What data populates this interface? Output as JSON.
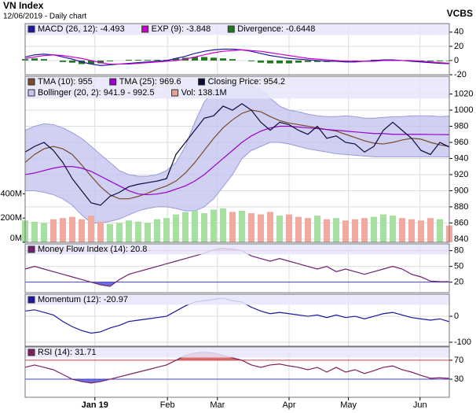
{
  "header": {
    "title": "VN Index",
    "subtitle": "12/06/2019 - Daily chart",
    "source": "VCBS"
  },
  "xticks": [
    {
      "value": 7.4,
      "label": "Jan 19"
    },
    {
      "value": 15.1,
      "label": "Feb"
    },
    {
      "value": 20.4,
      "label": "Mar"
    },
    {
      "value": 28,
      "label": "Apr"
    },
    {
      "value": 34.3,
      "label": "May"
    },
    {
      "value": 41.9,
      "label": "Jun"
    }
  ],
  "chart_data": [
    {
      "type": "line",
      "ylim": [
        -20,
        52
      ],
      "yticks": [
        -20,
        0,
        20,
        40
      ],
      "series": [
        {
          "name": "MACD (26, 12): -4.493",
          "kind": "line",
          "color": "#1a1aa0",
          "values": [
            5,
            8,
            9,
            8,
            5,
            2,
            -2,
            -5,
            -7,
            -6,
            -5,
            -4,
            -3,
            -2,
            -1,
            0,
            3,
            6,
            10,
            13,
            15,
            16,
            16,
            15,
            13,
            10,
            7,
            5,
            3,
            2,
            1,
            0,
            -1,
            -1,
            -2,
            -2,
            -1,
            0,
            1,
            1,
            0,
            -1,
            -2,
            -3,
            -4,
            -4.493
          ]
        },
        {
          "name": "EXP (9): -3.848",
          "kind": "line",
          "color": "#cc00cc",
          "values": [
            3,
            5,
            7,
            8,
            7,
            5,
            3,
            0,
            -3,
            -5,
            -5,
            -5,
            -4,
            -3,
            -2,
            -1,
            0,
            2,
            5,
            8,
            11,
            13,
            14,
            15,
            14,
            13,
            11,
            9,
            7,
            5,
            3,
            2,
            1,
            0,
            -1,
            -1,
            -1,
            -1,
            0,
            0,
            0,
            0,
            -1,
            -2,
            -3,
            -3.848
          ]
        },
        {
          "name": "Divergence: -0.6448",
          "kind": "bars",
          "color": "#1f7a1f",
          "values": [
            2,
            3,
            2,
            0,
            -2,
            -3,
            -5,
            -5,
            -4,
            -1,
            0,
            1,
            1,
            1,
            1,
            1,
            3,
            4,
            5,
            5,
            4,
            3,
            2,
            0,
            -1,
            -3,
            -4,
            -4,
            -4,
            -3,
            -2,
            -2,
            -2,
            -1,
            -1,
            -1,
            0,
            1,
            1,
            1,
            0,
            -1,
            -1,
            -1,
            -1,
            -0.6448
          ]
        }
      ]
    },
    {
      "type": "line",
      "ylim": [
        836,
        1042
      ],
      "yticks": [
        840,
        860,
        880,
        900,
        920,
        940,
        960,
        980,
        1000,
        1020
      ],
      "series": [
        {
          "name": "TMA (10): 955",
          "kind": "line",
          "color": "#7a4a2a",
          "values": [
            935,
            945,
            952,
            955,
            952,
            945,
            932,
            918,
            905,
            895,
            890,
            890,
            893,
            897,
            902,
            906,
            912,
            922,
            935,
            950,
            965,
            978,
            988,
            996,
            1000,
            998,
            992,
            987,
            984,
            982,
            980,
            978,
            976,
            974,
            970,
            966,
            962,
            959,
            958,
            960,
            963,
            965,
            964,
            960,
            957,
            955
          ]
        },
        {
          "name": "TMA (25): 969.6",
          "kind": "line",
          "color": "#9900cc",
          "values": [
            920,
            922,
            925,
            928,
            930,
            930,
            928,
            924,
            918,
            912,
            906,
            900,
            896,
            895,
            896,
            898,
            902,
            906,
            912,
            920,
            930,
            940,
            950,
            960,
            968,
            974,
            978,
            980,
            980,
            979,
            978,
            977,
            976,
            975,
            974,
            973,
            972,
            971,
            971,
            970,
            970,
            970,
            970,
            969.8,
            969.7,
            969.6
          ]
        },
        {
          "name": "Closing Price: 954.2",
          "kind": "line",
          "color": "#0a0a40",
          "values": [
            948,
            955,
            960,
            950,
            935,
            915,
            900,
            885,
            882,
            893,
            898,
            905,
            908,
            910,
            912,
            915,
            945,
            960,
            975,
            990,
            993,
            1005,
            1000,
            1008,
            1000,
            985,
            975,
            985,
            982,
            975,
            970,
            980,
            965,
            968,
            960,
            958,
            948,
            955,
            975,
            985,
            975,
            965,
            950,
            945,
            960,
            954.2
          ]
        },
        {
          "name": "Bollinger (20, 2): 941.9 - 992.5",
          "kind": "band",
          "color": "#c4c4f0",
          "upper": [
            975,
            980,
            983,
            982,
            978,
            972,
            965,
            955,
            945,
            935,
            925,
            920,
            918,
            918,
            920,
            925,
            935,
            955,
            985,
            1010,
            1025,
            1028,
            1030,
            1032,
            1030,
            1025,
            1015,
            1005,
            1000,
            998,
            995,
            993,
            992,
            992,
            993,
            992,
            990,
            990,
            991,
            992,
            992,
            993,
            993,
            993,
            992,
            992.5
          ],
          "lower": [
            900,
            900,
            898,
            895,
            890,
            882,
            870,
            860,
            860,
            862,
            865,
            870,
            875,
            878,
            880,
            880,
            878,
            875,
            875,
            880,
            890,
            905,
            920,
            940,
            950,
            955,
            960,
            960,
            958,
            955,
            952,
            950,
            948,
            946,
            945,
            944,
            943,
            942,
            942,
            942,
            942,
            942,
            942,
            942,
            942,
            941.9
          ]
        },
        {
          "name": "Vol: 138.1M",
          "kind": "volume",
          "color": "#e8a090",
          "up_color": "#a6e0a0",
          "down_color": "#f0aaa0",
          "vlim": [
            0,
            1370
          ],
          "vticks": [
            {
              "value": 0,
              "label": "0M"
            },
            {
              "value": 200,
              "label": "200M"
            },
            {
              "value": 400,
              "label": "400M"
            }
          ],
          "values": [
            180,
            170,
            160,
            190,
            200,
            210,
            190,
            220,
            170,
            150,
            160,
            180,
            170,
            160,
            190,
            200,
            230,
            250,
            260,
            240,
            270,
            280,
            250,
            260,
            240,
            230,
            250,
            220,
            230,
            210,
            200,
            220,
            190,
            200,
            180,
            190,
            200,
            210,
            230,
            220,
            200,
            190,
            180,
            200,
            190,
            138.1
          ]
        }
      ]
    },
    {
      "type": "line",
      "ylim": [
        0,
        93
      ],
      "yticks": [
        20,
        50,
        80
      ],
      "fill_levels": true,
      "level_colors": [
        "#d04040",
        "#4040d0"
      ],
      "series": [
        {
          "name": "Money Flow Index (14): 20.8",
          "kind": "line",
          "color": "#702070",
          "values": [
            45,
            50,
            45,
            40,
            35,
            30,
            25,
            20,
            15,
            12,
            25,
            35,
            40,
            45,
            50,
            55,
            60,
            65,
            70,
            75,
            82,
            85,
            83,
            80,
            70,
            65,
            60,
            65,
            60,
            55,
            50,
            45,
            50,
            40,
            45,
            40,
            35,
            40,
            45,
            50,
            45,
            35,
            30,
            22,
            21,
            20.8
          ]
        }
      ]
    },
    {
      "type": "line",
      "ylim": [
        -115,
        85
      ],
      "yticks": [
        -100,
        0
      ],
      "series": [
        {
          "name": "Momentum (12): -20.97",
          "kind": "line",
          "color": "#1a1aa0",
          "values": [
            20,
            25,
            15,
            5,
            -20,
            -40,
            -55,
            -65,
            -60,
            -45,
            -35,
            -20,
            -15,
            -10,
            -5,
            0,
            20,
            40,
            55,
            60,
            65,
            70,
            60,
            55,
            35,
            20,
            10,
            15,
            10,
            5,
            0,
            5,
            -5,
            5,
            -5,
            0,
            -10,
            0,
            10,
            15,
            5,
            -5,
            -10,
            -15,
            -10,
            -20.97
          ]
        }
      ]
    },
    {
      "type": "line",
      "ylim": [
        -8,
        98
      ],
      "yticks": [
        30,
        70
      ],
      "fill_levels": true,
      "level_colors": [
        "#d04040",
        "#4040d0"
      ],
      "series": [
        {
          "name": "RSI (14): 31.71",
          "kind": "line",
          "color": "#802060",
          "values": [
            55,
            60,
            55,
            50,
            40,
            30,
            25,
            22,
            25,
            30,
            35,
            40,
            45,
            50,
            55,
            60,
            70,
            80,
            85,
            87,
            85,
            80,
            75,
            70,
            60,
            55,
            60,
            62,
            58,
            55,
            50,
            55,
            45,
            55,
            45,
            50,
            42,
            48,
            55,
            58,
            50,
            45,
            38,
            32,
            33,
            31.71
          ]
        }
      ]
    }
  ]
}
